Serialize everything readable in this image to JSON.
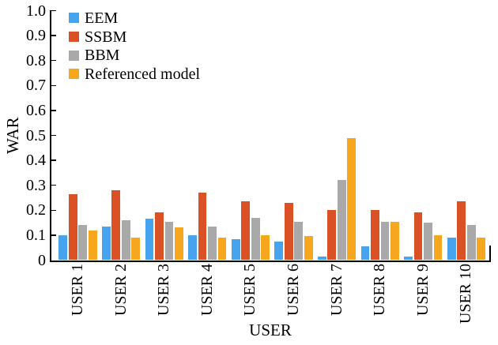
{
  "figure": {
    "background": "#ffffff",
    "axis_color": "#000000"
  },
  "chart_data": {
    "type": "bar",
    "title": "",
    "xlabel": "USER",
    "ylabel": "WAR",
    "categories": [
      "USER 1",
      "USER 2",
      "USER 3",
      "USER 4",
      "USER 5",
      "USER 6",
      "USER 7",
      "USER 8",
      "USER 9",
      "USER 10"
    ],
    "series": [
      {
        "name": "EEM",
        "color": "#46A3EE",
        "values": [
          0.1,
          0.135,
          0.165,
          0.1,
          0.085,
          0.075,
          0.015,
          0.055,
          0.015,
          0.09
        ]
      },
      {
        "name": "SSBM",
        "color": "#D95125",
        "values": [
          0.265,
          0.28,
          0.19,
          0.27,
          0.235,
          0.23,
          0.2,
          0.2,
          0.19,
          0.235
        ]
      },
      {
        "name": "BBM",
        "color": "#A9A9A9",
        "values": [
          0.14,
          0.16,
          0.155,
          0.135,
          0.17,
          0.155,
          0.32,
          0.155,
          0.15,
          0.14
        ]
      },
      {
        "name": "Referenced model",
        "color": "#F6A71E",
        "values": [
          0.12,
          0.09,
          0.13,
          0.09,
          0.1,
          0.095,
          0.49,
          0.155,
          0.1,
          0.09
        ]
      }
    ],
    "ylim": [
      0,
      1.0
    ],
    "ytick_step": 0.1,
    "ytick_labels": [
      "0",
      "0.1",
      "0.2",
      "0.3",
      "0.4",
      "0.5",
      "0.6",
      "0.7",
      "0.8",
      "0.9",
      "1.0"
    ],
    "legend_position": "top-left",
    "grid": false
  }
}
